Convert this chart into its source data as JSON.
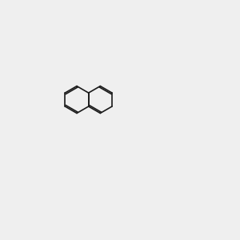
{
  "bg_color": "#efefef",
  "bond_color": "#1a1a1a",
  "N_color": "#2020cc",
  "O_color": "#cc2020",
  "Br_color": "#cc7700",
  "lw": 1.2,
  "font_size": 7.5
}
